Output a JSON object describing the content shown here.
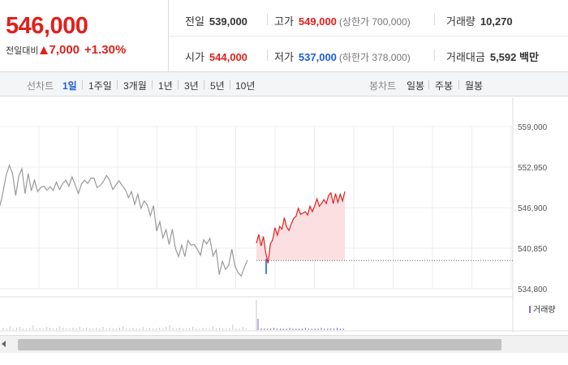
{
  "price": {
    "current": "546,000",
    "change_label": "전일대비",
    "change_value": "7,000",
    "change_pct": "+1.30%"
  },
  "stats": {
    "prev_label": "전일",
    "prev_value": "539,000",
    "high_label": "고가",
    "high_value": "549,000",
    "upper_limit": "(상한가 700,000)",
    "volume_label": "거래량",
    "volume_value": "10,270",
    "open_label": "시가",
    "open_value": "544,000",
    "low_label": "저가",
    "low_value": "537,000",
    "lower_limit": "(하한가 378,000)",
    "amount_label": "거래대금",
    "amount_value": "5,592 백만"
  },
  "toolbar": {
    "line_label": "선차트",
    "periods": [
      "1일",
      "1주일",
      "3개월",
      "1년",
      "3년",
      "5년",
      "10년"
    ],
    "candle_label": "봉차트",
    "candles": [
      "일봉",
      "주봉",
      "월봉"
    ]
  },
  "colors": {
    "up": "#e0201b",
    "down": "#1e5fd6",
    "prev_line": "#999999",
    "fill": "#fbd9dc",
    "volume": "#8a6cc8"
  },
  "chart_data": {
    "type": "line",
    "y_ticks": [
      "559,000",
      "552,950",
      "546,900",
      "540,850",
      "534,800"
    ],
    "ylim": [
      534800,
      559000
    ],
    "reference_price": 539000,
    "volume_legend": "거래량",
    "series": [
      {
        "values": [
          547200,
          549300,
          551800,
          553200,
          552000,
          548700,
          551600,
          552700,
          549000,
          552000,
          549400,
          551000,
          549300,
          549900,
          550100,
          549500,
          550000,
          549500,
          550700,
          549600,
          550500,
          551000,
          550100,
          551500,
          550300,
          549000,
          550400,
          551000,
          550500,
          551300,
          551300,
          549900,
          550200,
          550800,
          551700,
          551000,
          549600,
          550300,
          550900,
          550200,
          549600,
          548400,
          549300,
          547400,
          548900,
          546800,
          547900,
          547300,
          545700,
          547200,
          543400,
          544800,
          542400,
          543600,
          541400,
          543700,
          540800,
          539600,
          541300,
          539600,
          542000,
          541300,
          541400,
          540700,
          539800,
          542100,
          541500,
          542300,
          539700,
          540600,
          536900,
          538900,
          537700,
          538300,
          540700,
          538200,
          537200,
          536700,
          538000,
          539100
        ],
        "color": "#999999"
      },
      {
        "values": [
          541600,
          542900,
          541200,
          542600,
          540200,
          538600,
          541500,
          542100,
          543900,
          542800,
          544100,
          543700,
          545400,
          544000,
          543500,
          544500,
          545300,
          545600,
          546800,
          545900,
          546100,
          546300,
          545800,
          547100,
          546300,
          547100,
          548200,
          547100,
          547500,
          548100,
          547500,
          548700,
          549100,
          547500,
          549000,
          547700,
          548900,
          547900,
          549300
        ],
        "color": "#e0201b"
      }
    ]
  }
}
